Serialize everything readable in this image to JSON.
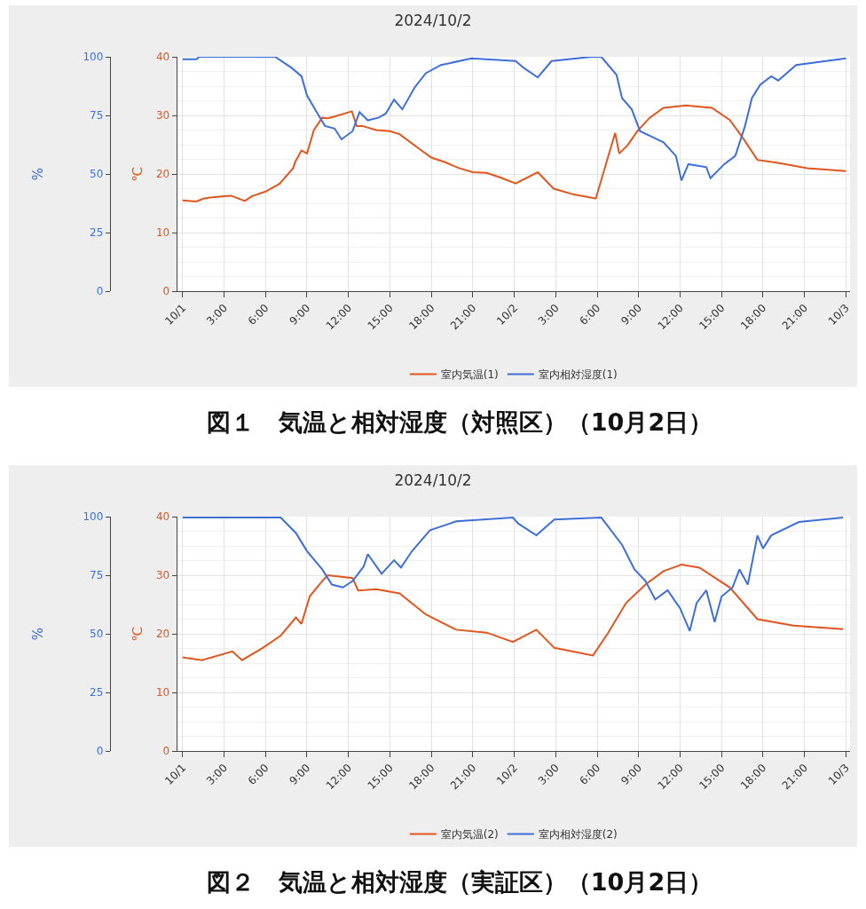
{
  "chart_data": [
    {
      "type": "line",
      "title": "2024/10/2",
      "ylabel": "%",
      "y2label": "℃",
      "annotations": [
        "図１　気温と相対湿度（対照区）（10月2日）"
      ],
      "xlim": [
        "2024-09-30T23:36",
        "2024-10-03T00:18"
      ],
      "xticks": [
        {
          "value": "2024-10-01T00:00",
          "label": "10/1"
        },
        {
          "value": "2024-10-01T03:00",
          "label": "3:00"
        },
        {
          "value": "2024-10-01T06:00",
          "label": "6:00"
        },
        {
          "value": "2024-10-01T09:00",
          "label": "9:00"
        },
        {
          "value": "2024-10-01T12:00",
          "label": "12:00"
        },
        {
          "value": "2024-10-01T15:00",
          "label": "15:00"
        },
        {
          "value": "2024-10-01T18:00",
          "label": "18:00"
        },
        {
          "value": "2024-10-01T21:00",
          "label": "21:00"
        },
        {
          "value": "2024-10-02T00:00",
          "label": "10/2"
        },
        {
          "value": "2024-10-02T03:00",
          "label": "3:00"
        },
        {
          "value": "2024-10-02T06:00",
          "label": "6:00"
        },
        {
          "value": "2024-10-02T09:00",
          "label": "9:00"
        },
        {
          "value": "2024-10-02T12:00",
          "label": "12:00"
        },
        {
          "value": "2024-10-02T15:00",
          "label": "15:00"
        },
        {
          "value": "2024-10-02T18:00",
          "label": "18:00"
        },
        {
          "value": "2024-10-02T21:00",
          "label": "21:00"
        },
        {
          "value": "2024-10-03T00:00",
          "label": "10/3"
        }
      ],
      "ylim": [
        0,
        100
      ],
      "yticks": [
        0,
        25,
        50,
        75,
        100
      ],
      "y2lim": [
        0,
        40
      ],
      "y2ticks": [
        0,
        10,
        20,
        30,
        40
      ],
      "grid": true,
      "legend": "bottom",
      "series": [
        {
          "name": "室内気温(1)",
          "color": "#e2551e",
          "axis": "y2",
          "x": [
            "2024-10-01T00:00",
            "2024-10-01T01:00",
            "2024-10-01T01:30",
            "2024-10-01T02:00",
            "2024-10-01T03:00",
            "2024-10-01T03:30",
            "2024-10-01T04:30",
            "2024-10-01T05:00",
            "2024-10-01T06:00",
            "2024-10-01T07:00",
            "2024-10-01T08:00",
            "2024-10-01T08:09",
            "2024-10-01T08:36",
            "2024-10-01T09:00",
            "2024-10-01T09:30",
            "2024-10-01T10:06",
            "2024-10-01T10:30",
            "2024-10-01T11:00",
            "2024-10-01T12:15",
            "2024-10-01T12:36",
            "2024-10-01T13:00",
            "2024-10-01T14:00",
            "2024-10-01T15:00",
            "2024-10-01T15:42",
            "2024-10-01T17:00",
            "2024-10-01T18:00",
            "2024-10-01T19:00",
            "2024-10-01T20:00",
            "2024-10-01T21:00",
            "2024-10-01T22:00",
            "2024-10-01T23:00",
            "2024-10-02T00:06",
            "2024-10-02T01:42",
            "2024-10-02T02:51",
            "2024-10-02T04:18",
            "2024-10-02T05:54",
            "2024-10-02T07:18",
            "2024-10-02T07:36",
            "2024-10-02T08:12",
            "2024-10-02T08:54",
            "2024-10-02T09:48",
            "2024-10-02T10:48",
            "2024-10-02T12:24",
            "2024-10-02T14:18",
            "2024-10-02T15:36",
            "2024-10-02T16:30",
            "2024-10-02T17:36",
            "2024-10-02T19:06",
            "2024-10-02T21:12",
            "2024-10-03T00:00"
          ],
          "values": [
            15.5,
            15.3,
            15.8,
            16,
            16.2,
            16.3,
            15.4,
            16.2,
            17,
            18.3,
            21,
            22.1,
            24,
            23.5,
            27.5,
            29.6,
            29.5,
            29.8,
            30.7,
            28.2,
            28.2,
            27.5,
            27.3,
            26.8,
            24.5,
            22.8,
            22,
            21,
            20.3,
            20.2,
            19.4,
            18.4,
            20.3,
            17.5,
            16.5,
            15.8,
            27,
            23.5,
            24.9,
            27.3,
            29.6,
            31.3,
            31.7,
            31.3,
            29.2,
            26.3,
            22.4,
            21.9,
            21,
            20.5
          ]
        },
        {
          "name": "室内相対湿度(1)",
          "color": "#3e6fd9",
          "axis": "y",
          "x": [
            "2024-10-01T00:00",
            "2024-10-01T01:00",
            "2024-10-01T01:12",
            "2024-10-01T06:42",
            "2024-10-01T07:54",
            "2024-10-01T08:36",
            "2024-10-01T09:00",
            "2024-10-01T09:42",
            "2024-10-01T10:18",
            "2024-10-01T11:00",
            "2024-10-01T11:30",
            "2024-10-01T12:18",
            "2024-10-01T12:48",
            "2024-10-01T13:24",
            "2024-10-01T14:12",
            "2024-10-01T14:42",
            "2024-10-01T15:18",
            "2024-10-01T15:54",
            "2024-10-01T16:48",
            "2024-10-01T17:36",
            "2024-10-01T18:42",
            "2024-10-01T20:54",
            "2024-10-02T00:06",
            "2024-10-02T00:42",
            "2024-10-02T01:42",
            "2024-10-02T02:42",
            "2024-10-02T05:36",
            "2024-10-02T06:18",
            "2024-10-02T07:24",
            "2024-10-02T07:48",
            "2024-10-02T08:30",
            "2024-10-02T09:06",
            "2024-10-02T10:00",
            "2024-10-02T10:48",
            "2024-10-02T11:42",
            "2024-10-02T12:06",
            "2024-10-02T12:36",
            "2024-10-02T13:54",
            "2024-10-02T14:12",
            "2024-10-02T15:12",
            "2024-10-02T16:00",
            "2024-10-02T16:42",
            "2024-10-02T17:12",
            "2024-10-02T17:48",
            "2024-10-02T18:36",
            "2024-10-02T19:06",
            "2024-10-02T20:24",
            "2024-10-03T00:00"
          ],
          "values": [
            99,
            99,
            100,
            100,
            95.2,
            91.7,
            83.5,
            76.4,
            70.5,
            69.4,
            64.8,
            68.3,
            76.4,
            72.9,
            74.1,
            75.8,
            81.7,
            77.6,
            87,
            93,
            96.5,
            99.3,
            98.2,
            95.2,
            91.2,
            98.2,
            100,
            100,
            92.3,
            82.4,
            77.6,
            68.3,
            65.8,
            63.5,
            57.7,
            47.2,
            54.2,
            52.9,
            48.2,
            54.2,
            57.7,
            70.5,
            82.4,
            88.1,
            91.7,
            89.9,
            96.5,
            99.3
          ]
        }
      ]
    },
    {
      "type": "line",
      "title": "2024/10/2",
      "ylabel": "%",
      "y2label": "℃",
      "annotations": [
        "図２　気温と相対湿度（実証区）（10月2日）"
      ],
      "xlim": [
        "2024-09-30T23:36",
        "2024-10-03T00:18"
      ],
      "xticks": [
        {
          "value": "2024-10-01T00:00",
          "label": "10/1"
        },
        {
          "value": "2024-10-01T03:00",
          "label": "3:00"
        },
        {
          "value": "2024-10-01T06:00",
          "label": "6:00"
        },
        {
          "value": "2024-10-01T09:00",
          "label": "9:00"
        },
        {
          "value": "2024-10-01T12:00",
          "label": "12:00"
        },
        {
          "value": "2024-10-01T15:00",
          "label": "15:00"
        },
        {
          "value": "2024-10-01T18:00",
          "label": "18:00"
        },
        {
          "value": "2024-10-01T21:00",
          "label": "21:00"
        },
        {
          "value": "2024-10-02T00:00",
          "label": "10/2"
        },
        {
          "value": "2024-10-02T03:00",
          "label": "3:00"
        },
        {
          "value": "2024-10-02T06:00",
          "label": "6:00"
        },
        {
          "value": "2024-10-02T09:00",
          "label": "9:00"
        },
        {
          "value": "2024-10-02T12:00",
          "label": "12:00"
        },
        {
          "value": "2024-10-02T15:00",
          "label": "15:00"
        },
        {
          "value": "2024-10-02T18:00",
          "label": "18:00"
        },
        {
          "value": "2024-10-02T21:00",
          "label": "21:00"
        },
        {
          "value": "2024-10-03T00:00",
          "label": "10/3"
        }
      ],
      "ylim": [
        0,
        100
      ],
      "yticks": [
        0,
        25,
        50,
        75,
        100
      ],
      "y2lim": [
        0,
        40
      ],
      "y2ticks": [
        0,
        10,
        20,
        30,
        40
      ],
      "grid": true,
      "legend": "bottom",
      "series": [
        {
          "name": "室内気温(2)",
          "color": "#e2551e",
          "axis": "y2",
          "x": [
            "2024-10-01T00:00",
            "2024-10-01T01:24",
            "2024-10-01T03:36",
            "2024-10-01T04:18",
            "2024-10-01T05:48",
            "2024-10-01T07:06",
            "2024-10-01T08:12",
            "2024-10-01T08:36",
            "2024-10-01T09:12",
            "2024-10-01T10:06",
            "2024-10-01T10:30",
            "2024-10-01T12:18",
            "2024-10-01T12:42",
            "2024-10-01T14:00",
            "2024-10-01T15:42",
            "2024-10-01T17:36",
            "2024-10-01T19:48",
            "2024-10-01T22:00",
            "2024-10-01T23:54",
            "2024-10-02T01:36",
            "2024-10-02T02:54",
            "2024-10-02T05:42",
            "2024-10-02T06:48",
            "2024-10-02T08:06",
            "2024-10-02T09:30",
            "2024-10-02T10:48",
            "2024-10-02T12:06",
            "2024-10-02T13:24",
            "2024-10-02T15:36",
            "2024-10-02T17:36",
            "2024-10-02T20:12",
            "2024-10-02T23:48"
          ],
          "values": [
            16,
            15.5,
            17,
            15.5,
            17.6,
            19.7,
            22.8,
            21.7,
            26.4,
            29,
            30,
            29.5,
            27.4,
            27.6,
            26.9,
            23.3,
            20.7,
            20.2,
            18.6,
            20.7,
            17.6,
            16.3,
            20.2,
            25.3,
            28.4,
            30.7,
            31.8,
            31.3,
            27.9,
            22.5,
            21.4,
            20.8
          ]
        },
        {
          "name": "室内相対湿度(2)",
          "color": "#3e6fd9",
          "axis": "y",
          "x": [
            "2024-10-01T00:00",
            "2024-10-01T07:06",
            "2024-10-01T08:12",
            "2024-10-01T09:00",
            "2024-10-01T10:06",
            "2024-10-01T10:48",
            "2024-10-01T11:36",
            "2024-10-01T12:18",
            "2024-10-01T13:06",
            "2024-10-01T13:24",
            "2024-10-01T14:24",
            "2024-10-01T15:18",
            "2024-10-01T15:48",
            "2024-10-01T16:36",
            "2024-10-01T17:54",
            "2024-10-01T19:48",
            "2024-10-01T23:54",
            "2024-10-02T00:18",
            "2024-10-02T01:36",
            "2024-10-02T02:54",
            "2024-10-02T06:18",
            "2024-10-02T07:48",
            "2024-10-02T08:42",
            "2024-10-02T09:30",
            "2024-10-02T10:12",
            "2024-10-02T11:06",
            "2024-10-02T12:00",
            "2024-10-02T12:42",
            "2024-10-02T13:12",
            "2024-10-02T13:54",
            "2024-10-02T14:30",
            "2024-10-02T15:00",
            "2024-10-02T15:48",
            "2024-10-02T16:18",
            "2024-10-02T16:54",
            "2024-10-02T17:36",
            "2024-10-02T18:00",
            "2024-10-02T18:36",
            "2024-10-02T20:36",
            "2024-10-02T23:48"
          ],
          "values": [
            99.6,
            99.6,
            93,
            85.3,
            77.5,
            71,
            69.8,
            72.5,
            78.7,
            84,
            75.6,
            81.4,
            78.3,
            85.3,
            94.2,
            98,
            99.6,
            97,
            92,
            98.8,
            99.6,
            88,
            77.5,
            72.5,
            64.7,
            68.6,
            60.9,
            51.2,
            63.2,
            68.6,
            55,
            65.9,
            69.8,
            77.5,
            71,
            92,
            86.4,
            92,
            97.7,
            99.6
          ]
        }
      ]
    }
  ]
}
